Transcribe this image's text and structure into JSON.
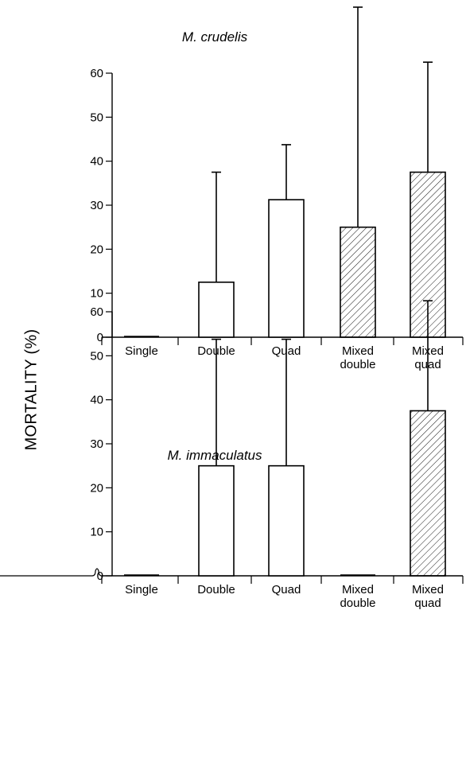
{
  "y_axis_label": "MORTALITY (%)",
  "chart_data": [
    {
      "type": "bar",
      "title": "M. crudelis",
      "ylabel": "MORTALITY (%)",
      "categories": [
        "Single",
        "Double",
        "Quad",
        "Mixed\ndouble",
        "Mixed\nquad"
      ],
      "values": [
        0,
        12.5,
        31.25,
        25,
        37.5
      ],
      "error_upper": [
        0,
        37.5,
        43.75,
        75,
        62.5
      ],
      "hatched": [
        false,
        false,
        false,
        true,
        true
      ],
      "yticks": [
        0,
        10,
        20,
        30,
        40,
        50,
        60
      ],
      "ylim": [
        0,
        60
      ],
      "grid": false
    },
    {
      "type": "bar",
      "title": "M. immaculatus",
      "ylabel": "MORTALITY (%)",
      "categories": [
        "Single",
        "Double",
        "Quad",
        "Mixed\ndouble",
        "Mixed\nquad"
      ],
      "values": [
        0,
        25,
        25,
        0,
        37.5
      ],
      "error_upper": [
        0,
        53.75,
        53.75,
        0,
        62.5
      ],
      "hatched": [
        false,
        false,
        false,
        true,
        true
      ],
      "yticks": [
        0,
        10,
        20,
        30,
        40,
        50,
        60
      ],
      "ylim": [
        0,
        60
      ],
      "grid": false
    }
  ]
}
